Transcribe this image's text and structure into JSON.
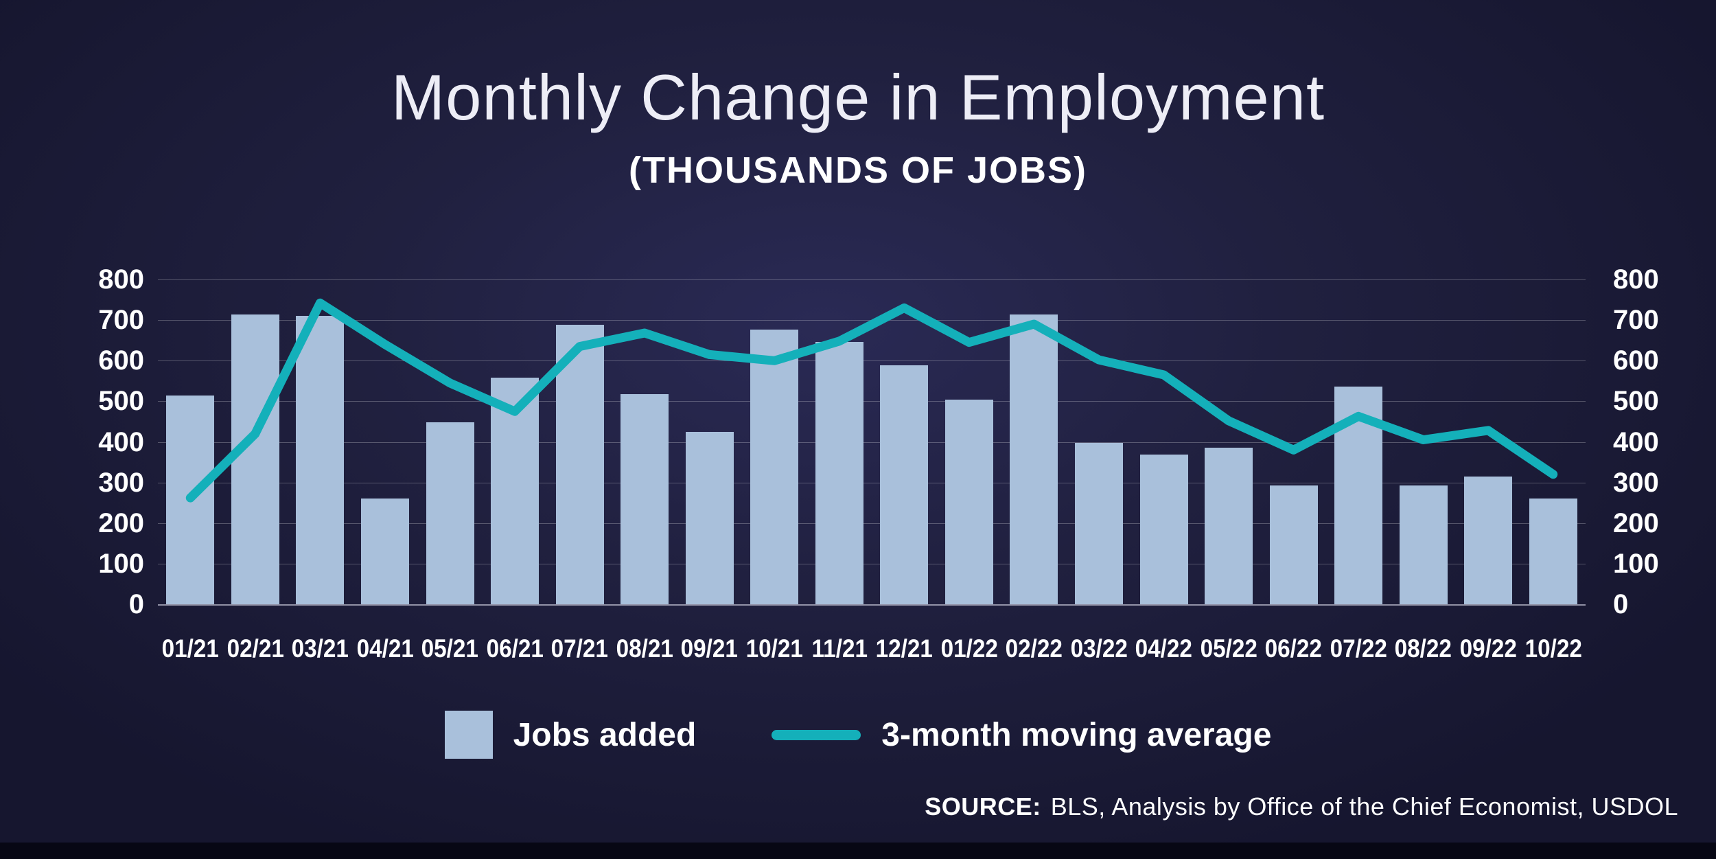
{
  "chart_data": {
    "type": "bar",
    "title": "Monthly Change in Employment",
    "subtitle": "(THOUSANDS OF JOBS)",
    "categories": [
      "01/21",
      "02/21",
      "03/21",
      "04/21",
      "05/21",
      "06/21",
      "07/21",
      "08/21",
      "09/21",
      "10/21",
      "11/21",
      "12/21",
      "01/22",
      "02/22",
      "03/22",
      "04/22",
      "05/22",
      "06/22",
      "07/22",
      "08/22",
      "09/22",
      "10/22"
    ],
    "series": [
      {
        "name": "Jobs added",
        "type": "bar",
        "values": [
          515,
          714,
          711,
          260,
          449,
          559,
          689,
          517,
          424,
          677,
          647,
          588,
          504,
          714,
          398,
          368,
          386,
          293,
          537,
          292,
          315,
          261
        ]
      },
      {
        "name": "3-month moving average",
        "type": "line",
        "values": [
          262,
          420,
          742,
          640,
          545,
          475,
          635,
          668,
          615,
          600,
          648,
          730,
          645,
          690,
          602,
          565,
          452,
          380,
          463,
          405,
          428,
          320
        ]
      }
    ],
    "ylim": [
      0,
      800
    ],
    "yticks": [
      0,
      100,
      200,
      300,
      400,
      500,
      600,
      700,
      800
    ],
    "y_axis_sides": "both",
    "grid": "horizontal",
    "legend_position": "bottom",
    "colors": {
      "bar": "#a9c0db",
      "line": "#14b0ba",
      "background": "#1e1e3e",
      "text": "#ffffff"
    }
  },
  "source": {
    "label": "SOURCE:",
    "text": "BLS, Analysis by Office of the Chief Economist, USDOL"
  }
}
